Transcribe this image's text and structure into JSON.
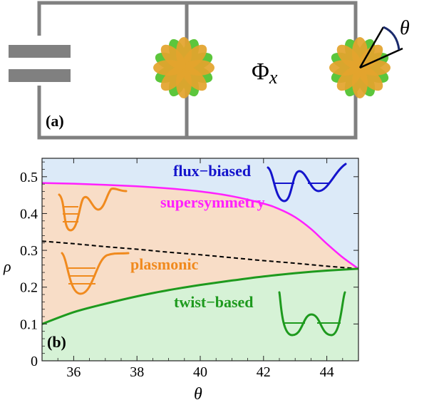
{
  "panel_a": {
    "label": "(a)",
    "flux_symbol": "Φ",
    "flux_subscript": "x",
    "angle_symbol": "θ",
    "colors": {
      "wire": "#808080",
      "petal_orange": "#E3A42D",
      "petal_green": "#5CC63C",
      "angle_line": "#000000",
      "arc": "#1A2A6C"
    },
    "icons": [
      "capacitor-icon",
      "flower-junction-icon",
      "flower-junction-icon"
    ]
  },
  "panel_b": {
    "label": "(b)",
    "xlabel": "θ",
    "ylabel": "ρ",
    "regions": {
      "flux": {
        "label": "flux−biased",
        "label_color": "#1414CC",
        "fill": "#DCEAF8",
        "well_color": "#1414CC"
      },
      "plasmonic": {
        "label": "plasmonic",
        "label_color": "#F08A1E",
        "fill": "#F8DDC7",
        "well_color": "#F08A1E"
      },
      "twist": {
        "label": "twist−based",
        "label_color": "#1E9A1E",
        "fill": "#D6F2D6",
        "well_color": "#1E9A1E"
      }
    },
    "curve_labels": {
      "supersymmetry": "supersymmetry"
    },
    "colors": {
      "susy": "#FF20FF",
      "twist": "#1E9A1E",
      "dashed": "#000000"
    }
  },
  "chart_data": {
    "type": "line",
    "xlabel": "θ",
    "ylabel": "ρ",
    "xlim": [
      35,
      45
    ],
    "ylim": [
      0,
      0.55
    ],
    "xticks": [
      36,
      38,
      40,
      42,
      44
    ],
    "yticks": [
      0,
      0.1,
      0.2,
      0.3,
      0.4,
      0.5
    ],
    "xtick_labels": [
      "36",
      "38",
      "40",
      "42",
      "44"
    ],
    "ytick_labels": [
      "0",
      "0.1",
      "0.2",
      "0.3",
      "0.4",
      "0.5"
    ],
    "series": [
      {
        "name": "supersymmetry",
        "x": [
          35,
          36,
          37,
          38,
          39,
          40,
          41,
          42,
          42.5,
          43,
          43.5,
          44,
          44.5,
          45
        ],
        "y": [
          0.483,
          0.481,
          0.478,
          0.474,
          0.468,
          0.46,
          0.447,
          0.427,
          0.412,
          0.39,
          0.358,
          0.318,
          0.281,
          0.25
        ]
      },
      {
        "name": "",
        "x": [
          35,
          36,
          37,
          38,
          39,
          40,
          41,
          42,
          43,
          44,
          45
        ],
        "y": [
          0.325,
          0.318,
          0.31,
          0.303,
          0.295,
          0.288,
          0.28,
          0.272,
          0.265,
          0.257,
          0.25
        ]
      },
      {
        "name": "",
        "x": [
          35,
          36,
          37,
          38,
          39,
          40,
          41,
          42,
          43,
          44,
          45
        ],
        "y": [
          0.1,
          0.132,
          0.155,
          0.175,
          0.192,
          0.206,
          0.218,
          0.229,
          0.238,
          0.245,
          0.25
        ]
      }
    ]
  }
}
